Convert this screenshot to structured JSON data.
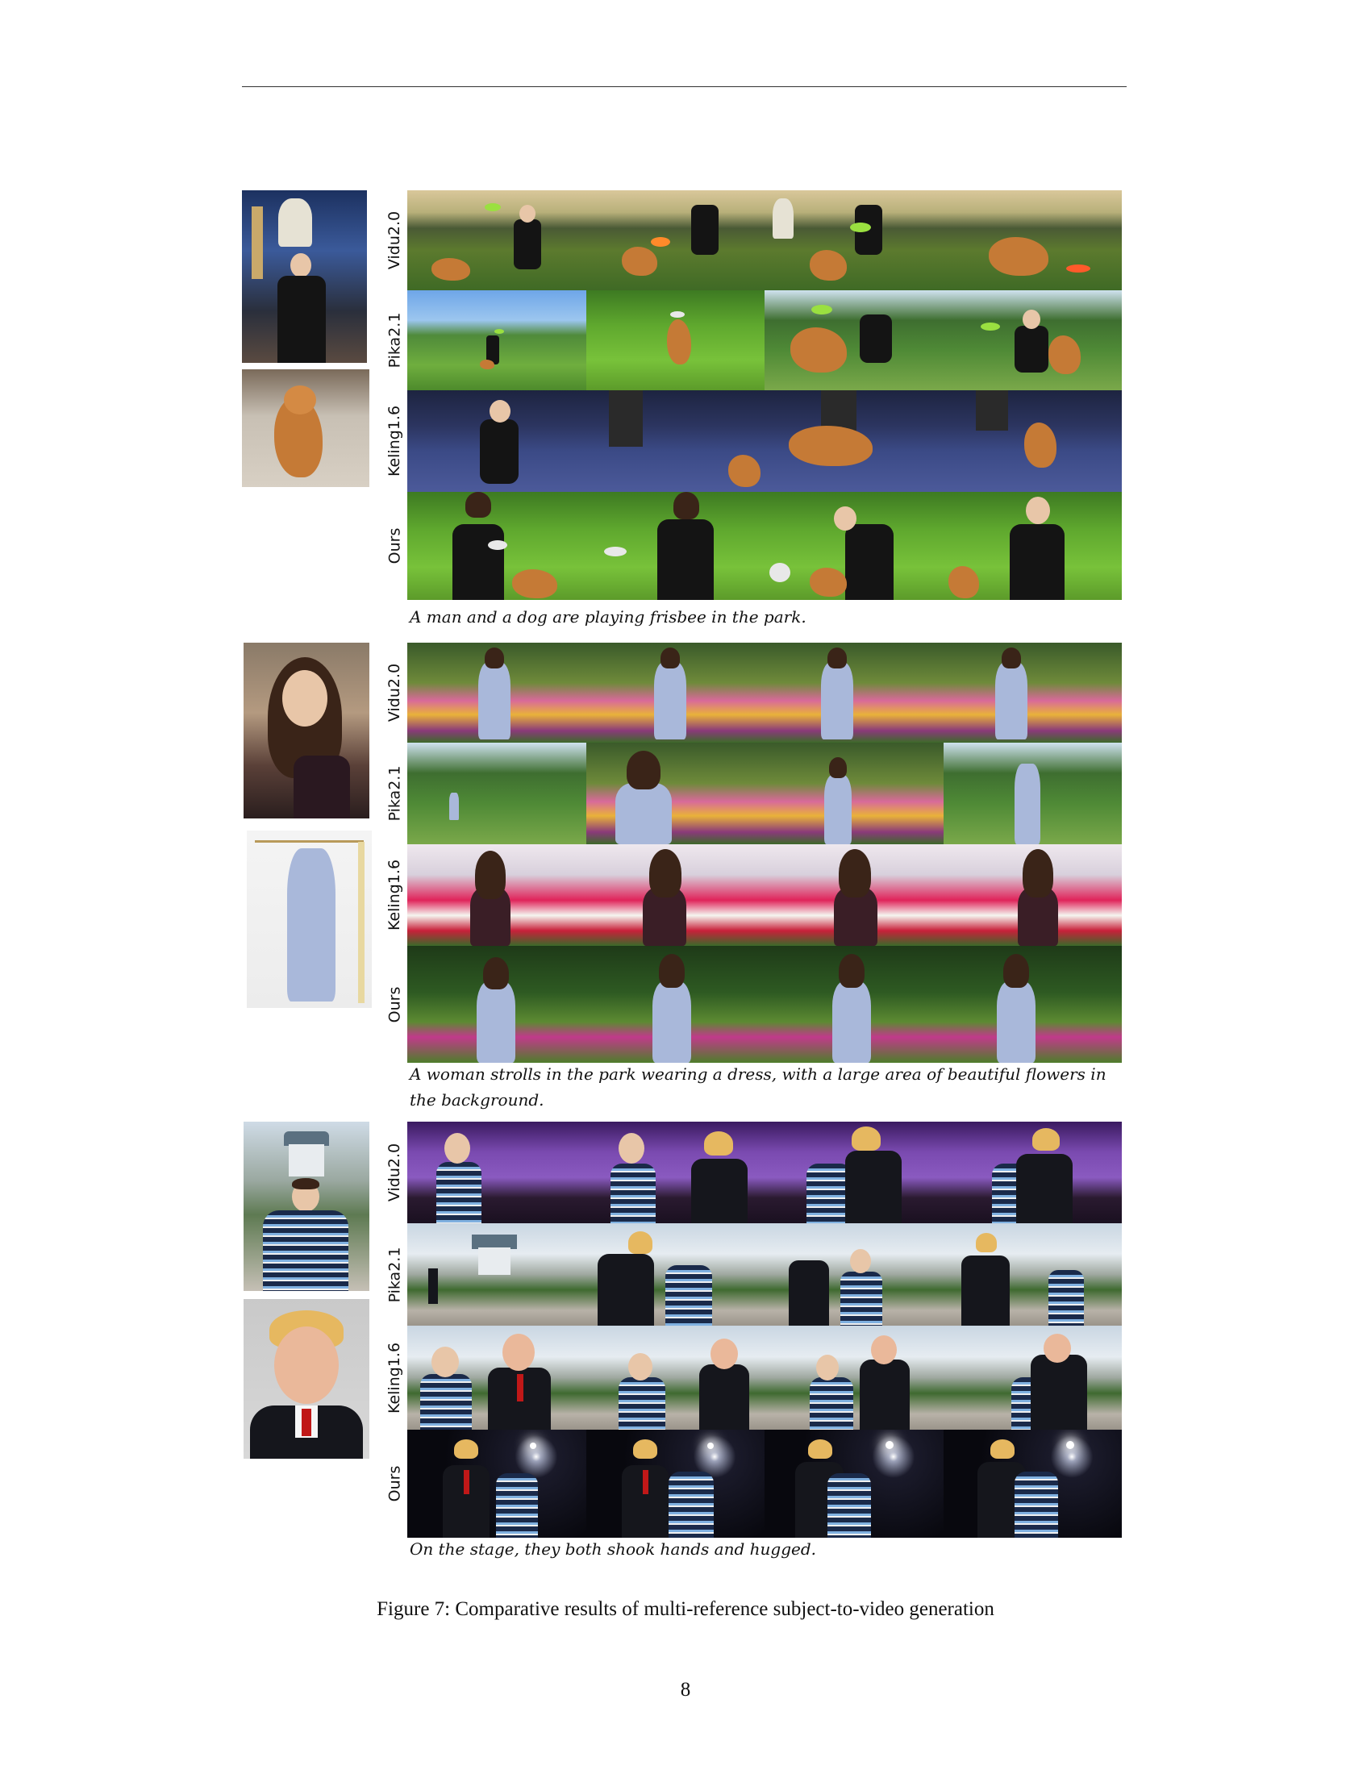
{
  "figure": {
    "row_labels": [
      "Vidu2.0",
      "Pika2.1",
      "Keling1.6",
      "Ours"
    ],
    "groups": [
      {
        "caption": "A man and a dog are playing frisbee in the park.",
        "references": [
          "man-black-tshirt-merlion-night",
          "shiba-inu-dog"
        ]
      },
      {
        "caption": "A woman strolls in the park wearing a dress, with a large area of beautiful flowers in the background.",
        "references": [
          "woman-long-hair-portrait",
          "light-blue-wrap-dress"
        ]
      },
      {
        "caption": "On the stage, they both shook hands and hugged.",
        "references": [
          "man-striped-shirt-castle",
          "man-blond-suit-red-tie"
        ]
      }
    ],
    "caption": "Figure 7: Comparative results of multi-reference subject-to-video generation"
  },
  "page": {
    "number": "8"
  }
}
